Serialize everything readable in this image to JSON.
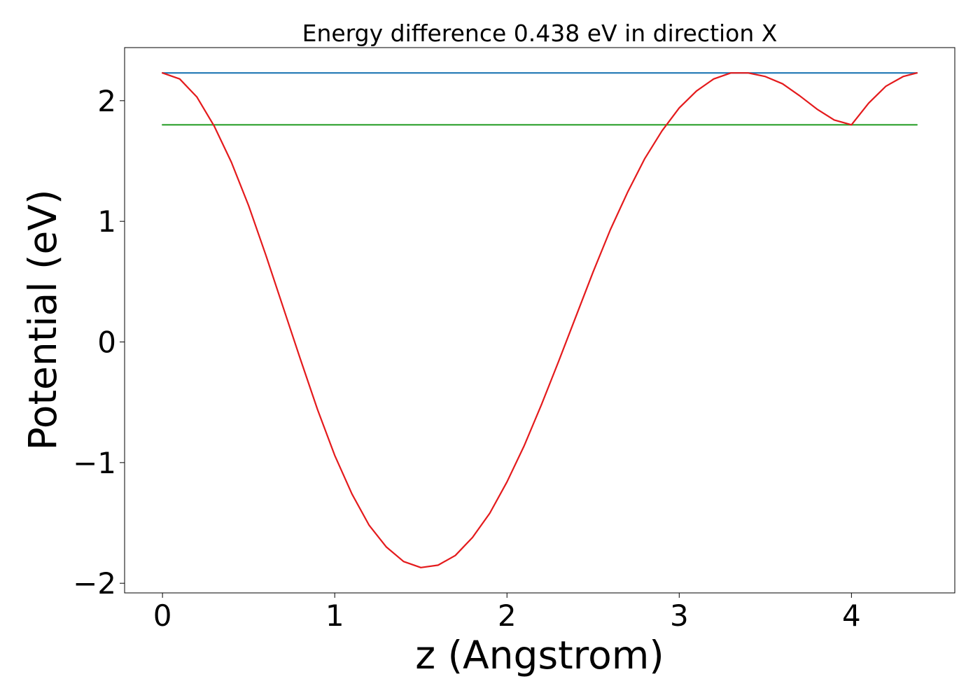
{
  "chart_data": {
    "type": "line",
    "title": "Energy difference 0.438 eV in direction X",
    "xlabel": "z (Angstrom)",
    "ylabel": "Potential (eV)",
    "xlim": [
      -0.22,
      4.6
    ],
    "ylim": [
      -2.08,
      2.44
    ],
    "xticks": [
      0,
      1,
      2,
      3,
      4
    ],
    "yticks": [
      -2,
      -1,
      0,
      1,
      2
    ],
    "xtick_labels": [
      "0",
      "1",
      "2",
      "3",
      "4"
    ],
    "ytick_labels": [
      "−2",
      "−1",
      "0",
      "1",
      "2"
    ],
    "grid": false,
    "legend": "none",
    "series": [
      {
        "color": "#1f77b4",
        "x": [
          0,
          4.38
        ],
        "y": [
          2.23,
          2.23
        ]
      },
      {
        "color": "#2ca02c",
        "x": [
          0,
          4.38
        ],
        "y": [
          1.8,
          1.8
        ]
      },
      {
        "color": "#e41a1c",
        "x": [
          0,
          0.1,
          0.2,
          0.3,
          0.4,
          0.5,
          0.6,
          0.7,
          0.8,
          0.9,
          1.0,
          1.1,
          1.2,
          1.3,
          1.4,
          1.5,
          1.6,
          1.7,
          1.8,
          1.9,
          2.0,
          2.1,
          2.2,
          2.3,
          2.4,
          2.5,
          2.6,
          2.7,
          2.8,
          2.9,
          3.0,
          3.1,
          3.2,
          3.3,
          3.4,
          3.5,
          3.6,
          3.7,
          3.8,
          3.9,
          4.0,
          4.1,
          4.2,
          4.3,
          4.38
        ],
        "y": [
          2.23,
          2.18,
          2.03,
          1.79,
          1.49,
          1.13,
          0.72,
          0.29,
          -0.14,
          -0.56,
          -0.94,
          -1.26,
          -1.52,
          -1.7,
          -1.82,
          -1.87,
          -1.85,
          -1.77,
          -1.62,
          -1.42,
          -1.16,
          -0.86,
          -0.52,
          -0.16,
          0.21,
          0.58,
          0.93,
          1.24,
          1.52,
          1.75,
          1.94,
          2.08,
          2.18,
          2.23,
          2.23,
          2.2,
          2.14,
          2.04,
          1.93,
          1.84,
          1.8,
          1.98,
          2.12,
          2.2,
          2.23
        ]
      }
    ]
  }
}
